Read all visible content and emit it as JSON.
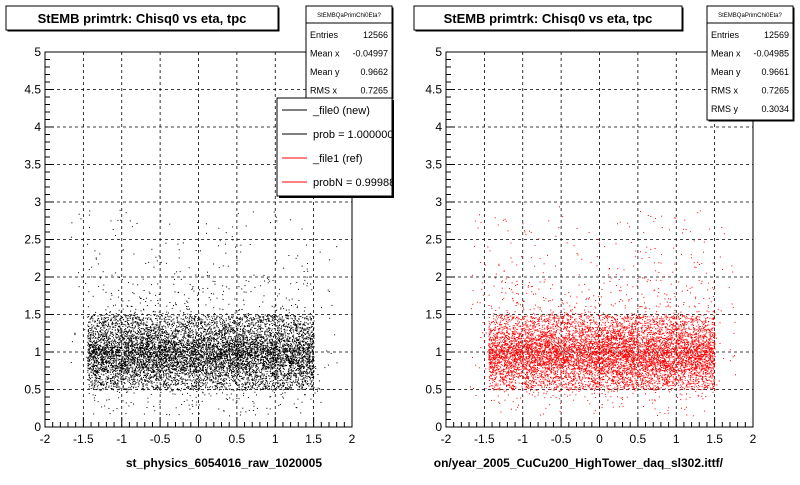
{
  "colors": {
    "new": "#000000",
    "ref": "#ff0000",
    "frame": "#000000",
    "grid": "#000000",
    "background": "#ffffff"
  },
  "chart_data": [
    {
      "type": "scatter",
      "title": "StEMB primtrk: Chisq0 vs eta, tpc",
      "xlabel": "st_physics_6054016_raw_1020005",
      "ylabel": "",
      "xlim": [
        -2,
        2
      ],
      "ylim": [
        0,
        5
      ],
      "xticks": [
        "-2",
        "-1.5",
        "-1",
        "-0.5",
        "0",
        "0.5",
        "1",
        "1.5",
        "2"
      ],
      "yticks": [
        "0",
        "0.5",
        "1",
        "1.5",
        "2",
        "2.5",
        "3",
        "3.5",
        "4",
        "4.5",
        "5"
      ],
      "grid": true,
      "series": [
        {
          "color": "#000000",
          "x_range": [
            -1.45,
            1.5
          ],
          "y_core": [
            0.5,
            1.5
          ],
          "y_center": 0.97
        }
      ],
      "stats": {
        "name": "StEMBQaPrimChi0Eta?",
        "rows": [
          {
            "label": "Entries",
            "value": "12566"
          },
          {
            "label": "Mean x",
            "value": "-0.04997"
          },
          {
            "label": "Mean y",
            "value": "0.9662"
          },
          {
            "label": "RMS x",
            "value": "0.7265"
          }
        ]
      },
      "legend": {
        "placement": "top-right",
        "entries": [
          {
            "label": "_file0 (new)",
            "color": "#000000"
          },
          {
            "label": "prob = 1.000000",
            "color": "#000000"
          },
          {
            "label": "_file1 (ref)",
            "color": "#ff0000"
          },
          {
            "label": "probN = 0.999880",
            "color": "#ff0000"
          }
        ]
      }
    },
    {
      "type": "scatter",
      "title": "StEMB primtrk: Chisq0 vs eta, tpc",
      "xlabel": "on/year_2005_CuCu200_HighTower_daq_sl302.ittf/",
      "ylabel": "",
      "xlim": [
        -2,
        2
      ],
      "ylim": [
        0,
        5
      ],
      "xticks": [
        "-2",
        "-1.5",
        "-1",
        "-0.5",
        "0",
        "0.5",
        "1",
        "1.5",
        "2"
      ],
      "yticks": [
        "0",
        "0.5",
        "1",
        "1.5",
        "2",
        "2.5",
        "3",
        "3.5",
        "4",
        "4.5",
        "5"
      ],
      "grid": true,
      "series": [
        {
          "color": "#ff0000",
          "x_range": [
            -1.45,
            1.5
          ],
          "y_core": [
            0.5,
            1.5
          ],
          "y_center": 0.97
        }
      ],
      "stats": {
        "name": "StEMBQaPrimChi0Eta?",
        "rows": [
          {
            "label": "Entries",
            "value": "12569"
          },
          {
            "label": "Mean x",
            "value": "-0.04985"
          },
          {
            "label": "Mean y",
            "value": "0.9661"
          },
          {
            "label": "RMS x",
            "value": "0.7265"
          },
          {
            "label": "RMS y",
            "value": "0.3034"
          }
        ]
      }
    }
  ]
}
